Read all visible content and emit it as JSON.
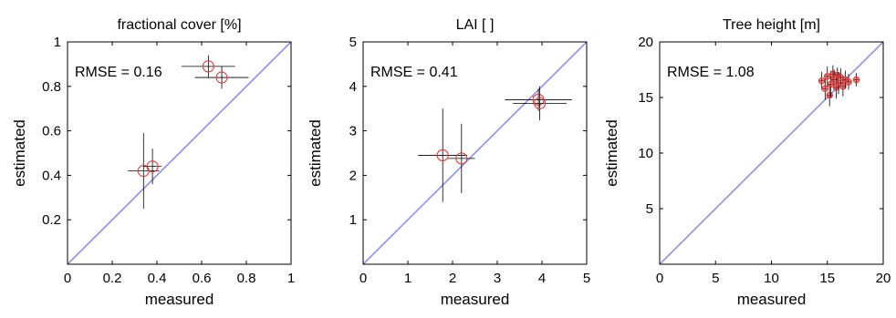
{
  "chart_data": [
    {
      "type": "scatter",
      "title": "fractional cover [%]",
      "xlabel": "measured",
      "ylabel": "estimated",
      "xlim": [
        0,
        1
      ],
      "ylim": [
        0,
        1
      ],
      "xticks": [
        "0",
        "0.2",
        "0.4",
        "0.6",
        "0.8",
        "1"
      ],
      "yticks": [
        "0.2",
        "0.4",
        "0.6",
        "0.8",
        "1"
      ],
      "annotation": "RMSE = 0.16",
      "grid": false,
      "one_to_one_line": true,
      "series": [
        {
          "marker": "circle",
          "points": [
            {
              "x": 0.34,
              "y": 0.42,
              "xerr": 0.07,
              "yerr": 0.17
            },
            {
              "x": 0.38,
              "y": 0.44,
              "xerr": 0.04,
              "yerr": 0.08
            },
            {
              "x": 0.63,
              "y": 0.89,
              "xerr": 0.12,
              "yerr": 0.05
            },
            {
              "x": 0.69,
              "y": 0.84,
              "xerr": 0.12,
              "yerr": 0.05
            }
          ]
        }
      ]
    },
    {
      "type": "scatter",
      "title": "LAI [ ]",
      "xlabel": "measured",
      "ylabel": "estimated",
      "xlim": [
        0,
        5
      ],
      "ylim": [
        0,
        5
      ],
      "xticks": [
        "0",
        "1",
        "2",
        "3",
        "4",
        "5"
      ],
      "yticks": [
        "1",
        "2",
        "3",
        "4",
        "5"
      ],
      "annotation": "RMSE = 0.41",
      "grid": false,
      "one_to_one_line": true,
      "series": [
        {
          "marker": "circle",
          "points": [
            {
              "x": 1.78,
              "y": 2.45,
              "xerr": 0.55,
              "yerr": 1.05
            },
            {
              "x": 2.2,
              "y": 2.38,
              "xerr": 0.3,
              "yerr": 0.78
            },
            {
              "x": 3.92,
              "y": 3.7,
              "xerr": 0.75,
              "yerr": 0.25
            },
            {
              "x": 3.95,
              "y": 3.62,
              "xerr": 0.6,
              "yerr": 0.38
            }
          ]
        }
      ]
    },
    {
      "type": "scatter",
      "title": "Tree height [m]",
      "xlabel": "measured",
      "ylabel": "estimated",
      "xlim": [
        0,
        20
      ],
      "ylim": [
        0,
        20
      ],
      "xticks": [
        "0",
        "5",
        "10",
        "15",
        "20"
      ],
      "yticks": [
        "5",
        "10",
        "15",
        "20"
      ],
      "annotation": "RMSE = 1.08",
      "grid": false,
      "one_to_one_line": true,
      "series": [
        {
          "marker": "circle",
          "points": [
            {
              "x": 14.5,
              "y": 16.5,
              "xerr": 0.3,
              "yerr": 0.8
            },
            {
              "x": 14.8,
              "y": 15.8,
              "xerr": 0.3,
              "yerr": 1.0
            },
            {
              "x": 15.0,
              "y": 16.9,
              "xerr": 0.3,
              "yerr": 0.9
            },
            {
              "x": 15.2,
              "y": 15.2,
              "xerr": 0.3,
              "yerr": 1.0
            },
            {
              "x": 15.3,
              "y": 16.2,
              "xerr": 0.3,
              "yerr": 1.2
            },
            {
              "x": 15.5,
              "y": 17.1,
              "xerr": 0.3,
              "yerr": 0.8
            },
            {
              "x": 15.6,
              "y": 16.6,
              "xerr": 0.3,
              "yerr": 0.9
            },
            {
              "x": 15.8,
              "y": 15.9,
              "xerr": 0.3,
              "yerr": 1.0
            },
            {
              "x": 15.9,
              "y": 17.0,
              "xerr": 0.3,
              "yerr": 0.7
            },
            {
              "x": 16.0,
              "y": 16.3,
              "xerr": 0.3,
              "yerr": 1.0
            },
            {
              "x": 16.2,
              "y": 16.8,
              "xerr": 0.3,
              "yerr": 0.8
            },
            {
              "x": 16.4,
              "y": 16.0,
              "xerr": 0.3,
              "yerr": 0.9
            },
            {
              "x": 16.6,
              "y": 16.6,
              "xerr": 0.3,
              "yerr": 0.8
            },
            {
              "x": 16.9,
              "y": 16.4,
              "xerr": 0.3,
              "yerr": 0.7
            },
            {
              "x": 17.6,
              "y": 16.6,
              "xerr": 0.3,
              "yerr": 0.6
            }
          ]
        }
      ]
    }
  ],
  "colors": {
    "marker": "#e53935",
    "errorbar": "#000000",
    "one_to_one_line": "#8f8fe8",
    "axes": "#000000"
  }
}
